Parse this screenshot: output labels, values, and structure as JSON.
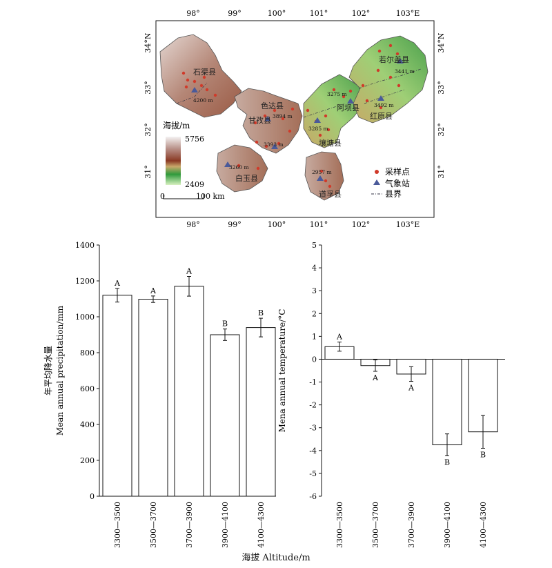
{
  "map": {
    "lon_labels": [
      "98°",
      "99°",
      "100°",
      "101°",
      "102°",
      "103°E"
    ],
    "lat_labels_left": [
      "34°N",
      "33°",
      "32°",
      "31°"
    ],
    "lat_labels_right": [
      "34°N",
      "33°",
      "32°",
      "31°"
    ],
    "counties": [
      "若尔盖县",
      "红原县",
      "阿坝县",
      "壤塘县",
      "色达县",
      "甘孜县",
      "白玉县",
      "石渠县",
      "道孚县"
    ],
    "station_labels": [
      "3441 m",
      "3492 m",
      "3275 m",
      "3285 m",
      "3894 m",
      "3393 m",
      "4200 m",
      "3260 m",
      "2957 m"
    ],
    "legend_title": "海拔/m",
    "elev_max": "5756",
    "elev_min": "2409",
    "scale_start": "0",
    "scale_end": "100 km",
    "key_items": [
      "采样点",
      "气象站",
      "县界"
    ],
    "colors": {
      "sample_point": "#d03a2a",
      "station": "#4a5a9a"
    }
  },
  "x_axis_title": "海拔 Altitude/m",
  "chart_data": [
    {
      "type": "bar",
      "ylabel_cn": "年平均降水量",
      "ylabel_en": "Mean annual precipitation/mm",
      "categories": [
        "3300—3500",
        "3500—3700",
        "3700—3900",
        "3900—4100",
        "4100—4300"
      ],
      "values": [
        1120,
        1098,
        1170,
        900,
        940
      ],
      "errors": [
        38,
        18,
        55,
        32,
        52
      ],
      "letters": [
        "A",
        "A",
        "A",
        "B",
        "B"
      ],
      "ylim": [
        0,
        1400
      ],
      "yticks": [
        "0",
        "200",
        "400",
        "600",
        "800",
        "1000",
        "1200",
        "1400"
      ]
    },
    {
      "type": "bar",
      "ylabel_cn": "年平均气温",
      "ylabel_en": "Mena annual temperature/°C",
      "categories": [
        "3300—3500",
        "3500—3700",
        "3700—3900",
        "3900—4100",
        "4100—4300"
      ],
      "values": [
        0.55,
        -0.28,
        -0.65,
        -3.75,
        -3.18
      ],
      "errors": [
        0.2,
        0.25,
        0.32,
        0.48,
        0.72
      ],
      "letters": [
        "A",
        "A",
        "A",
        "B",
        "B"
      ],
      "ylim": [
        -6,
        5
      ],
      "yticks": [
        "-6",
        "-5",
        "-4",
        "-3",
        "-2",
        "-1",
        "0",
        "1",
        "2",
        "3",
        "4",
        "5"
      ]
    }
  ]
}
